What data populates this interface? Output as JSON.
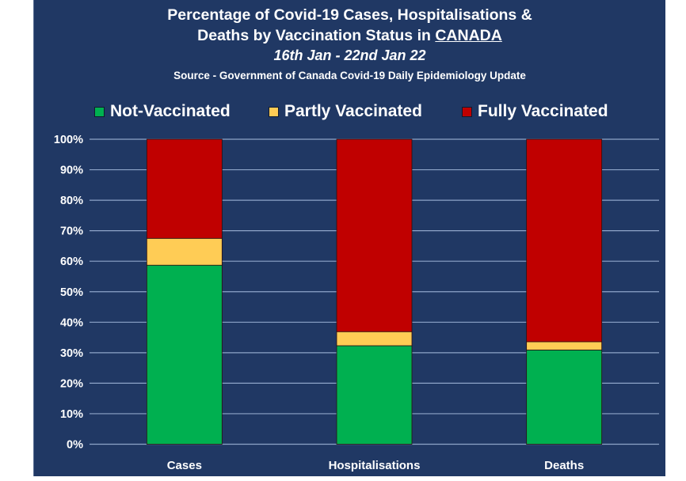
{
  "chart_data": {
    "type": "bar",
    "stacked": true,
    "normalized": true,
    "title": "Percentage of Covid-19 Cases, Hospitalisations & Deaths by Vaccination Status in CANADA",
    "title_line1": "Percentage of Covid-19 Cases, Hospitalisations &",
    "title_line2_prefix": "Deaths by Vaccination Status in ",
    "title_line2_underlined": "CANADA",
    "subtitle": "16th Jan - 22nd Jan 22",
    "source": "Source - Government of Canada Covid-19 Daily Epidemiology Update",
    "categories": [
      "Cases",
      "Hospitalisations",
      "Deaths"
    ],
    "series": [
      {
        "name": "Not-Vaccinated",
        "color": "#00B050",
        "values": [
          58.7,
          32.3,
          30.9
        ]
      },
      {
        "name": "Partly Vaccinated",
        "color": "#FFCC55",
        "values": [
          8.8,
          4.6,
          2.7
        ]
      },
      {
        "name": "Fully Vaccinated",
        "color": "#C00000",
        "values": [
          32.5,
          63.1,
          66.4
        ]
      }
    ],
    "xlabel": "",
    "ylabel": "",
    "ylim": [
      0,
      100
    ],
    "yticks": [
      "0%",
      "10%",
      "20%",
      "30%",
      "40%",
      "50%",
      "60%",
      "70%",
      "80%",
      "90%",
      "100%"
    ],
    "grid": true,
    "legend_position": "top",
    "background_color": "#203864",
    "gridline_color": "#8EA4C8"
  }
}
